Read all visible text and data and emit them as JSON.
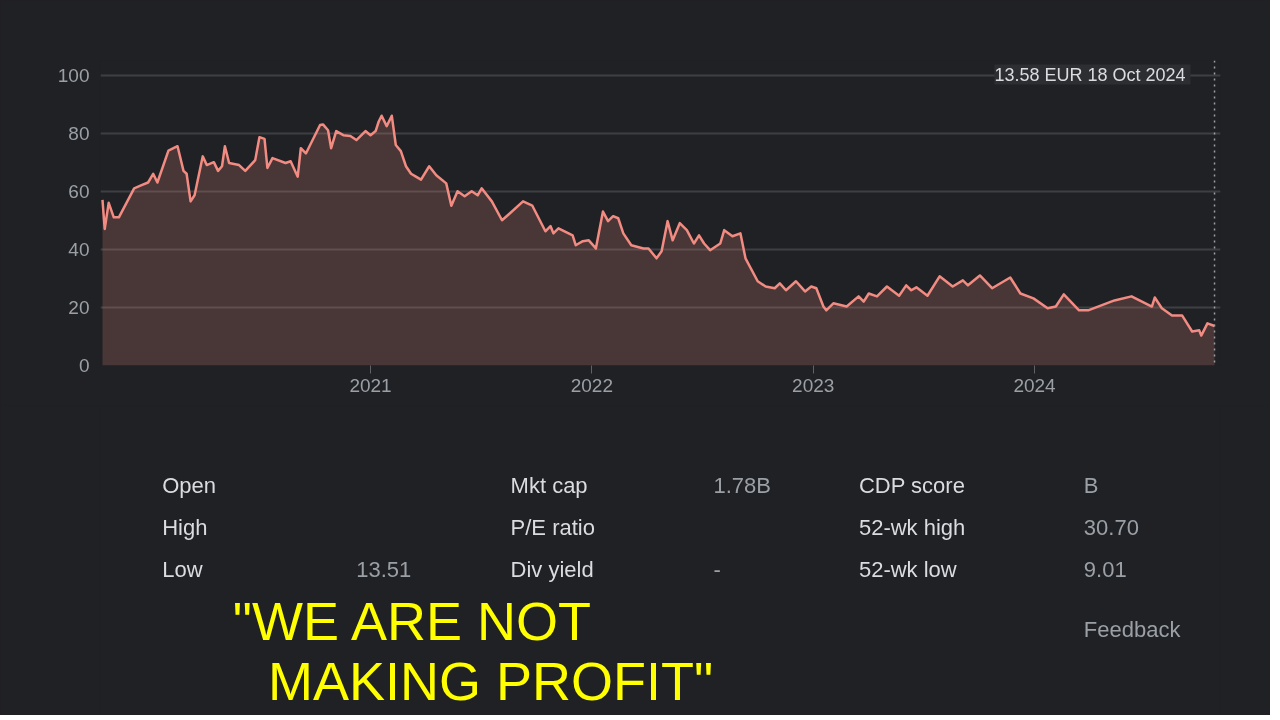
{
  "chart_data": {
    "type": "area",
    "x": [
      2019.789,
      2019.799,
      2019.817,
      2019.84,
      2019.863,
      2019.932,
      2019.963,
      2019.995,
      2020.018,
      2020.037,
      2020.087,
      2020.128,
      2020.155,
      2020.169,
      2020.187,
      2020.205,
      2020.242,
      2020.26,
      2020.292,
      2020.311,
      2020.329,
      2020.342,
      2020.361,
      2020.406,
      2020.434,
      2020.479,
      2020.498,
      2020.521,
      2020.534,
      2020.557,
      2020.616,
      2020.639,
      2020.671,
      2020.685,
      2020.708,
      2020.772,
      2020.785,
      2020.808,
      2020.822,
      2020.845,
      2020.877,
      2020.909,
      2020.936,
      2020.977,
      2021.0,
      2021.023,
      2021.037,
      2021.05,
      2021.073,
      2021.096,
      2021.114,
      2021.137,
      2021.16,
      2021.183,
      2021.205,
      2021.228,
      2021.265,
      2021.297,
      2021.342,
      2021.365,
      2021.393,
      2021.425,
      2021.457,
      2021.484,
      2021.502,
      2021.548,
      2021.594,
      2021.63,
      2021.689,
      2021.731,
      2021.79,
      2021.813,
      2021.826,
      2021.849,
      2021.913,
      2021.927,
      2021.959,
      2021.986,
      2022.018,
      2022.05,
      2022.073,
      2022.096,
      2022.119,
      2022.142,
      2022.178,
      2022.233,
      2022.256,
      2022.292,
      2022.315,
      2022.342,
      2022.365,
      2022.397,
      2022.429,
      2022.461,
      2022.484,
      2022.507,
      2022.534,
      2022.58,
      2022.598,
      2022.635,
      2022.671,
      2022.694,
      2022.749,
      2022.785,
      2022.826,
      2022.849,
      2022.877,
      2022.922,
      2022.963,
      2022.991,
      2023.014,
      2023.046,
      2023.059,
      2023.091,
      2023.151,
      2023.205,
      2023.228,
      2023.251,
      2023.288,
      2023.333,
      2023.388,
      2023.42,
      2023.443,
      2023.466,
      2023.516,
      2023.571,
      2023.63,
      2023.676,
      2023.699,
      2023.753,
      2023.808,
      2023.89,
      2023.936,
      2023.995,
      2024.059,
      2024.096,
      2024.132,
      2024.201,
      2024.242,
      2024.361,
      2024.438,
      2024.53,
      2024.543,
      2024.575,
      2024.621,
      2024.667,
      2024.712,
      2024.744,
      2024.753,
      2024.781,
      2024.813
    ],
    "series": [
      {
        "color": "#f28b82",
        "values": [
          57,
          47,
          56,
          51,
          51,
          61,
          62,
          63,
          66,
          63,
          74,
          75.5,
          67,
          66,
          56.5,
          58.6,
          72,
          69,
          70,
          67,
          68.6,
          75.5,
          69.7,
          69,
          67,
          70.7,
          78.6,
          78,
          68,
          71.4,
          69.7,
          70.3,
          65,
          74.8,
          73,
          82.8,
          83,
          81,
          74.8,
          80.7,
          79.3,
          79,
          77.6,
          80.7,
          79.3,
          80.7,
          84,
          86,
          82.4,
          86,
          75.9,
          73.8,
          68.6,
          66,
          65,
          64,
          68.6,
          65.5,
          62.7,
          55,
          60,
          58.3,
          60,
          58.6,
          61,
          56.5,
          50,
          52.4,
          56.5,
          55,
          46.2,
          48,
          45.5,
          47.2,
          44.8,
          41.4,
          42.8,
          43.1,
          40.3,
          53,
          49.7,
          51.4,
          50.7,
          45.5,
          41.4,
          40.3,
          40.3,
          36.9,
          39.3,
          49.7,
          43.1,
          49,
          46.6,
          42,
          44.8,
          42,
          39.7,
          42,
          46.6,
          44.5,
          45.5,
          36.9,
          29,
          27.2,
          26.6,
          28.3,
          25.9,
          29,
          25.5,
          27.2,
          26.6,
          20.3,
          19,
          21.4,
          20.3,
          23.8,
          22,
          24.8,
          23.8,
          27.2,
          24,
          27.6,
          25.9,
          26.9,
          24,
          30.7,
          27.2,
          29.3,
          27.6,
          31,
          26.6,
          30.3,
          24.8,
          23.1,
          19.7,
          20.3,
          24.5,
          19,
          19,
          22.4,
          23.8,
          20.3,
          23.4,
          19.7,
          17.2,
          17.2,
          11.7,
          12.1,
          10.3,
          14.5,
          13.6
        ]
      }
    ],
    "xlim": [
      2019.78,
      2024.84
    ],
    "xticks": [
      2021,
      2022,
      2023,
      2024
    ],
    "ylim": [
      0,
      105
    ],
    "yticks": [
      0,
      20,
      40,
      60,
      80,
      100
    ],
    "grid": "y",
    "ref_lines": [
      {
        "axis": "x",
        "value": 2024.813,
        "line_style": "dotted"
      }
    ],
    "annotations": [
      "13.58 EUR  18 Oct 2024",
      "Open",
      "Mkt cap",
      "1.78B",
      "CDP score",
      "B",
      "High",
      "P/E ratio",
      "52-wk high",
      "30.70",
      "Low",
      "13.51",
      "Div yield",
      "-",
      "52-wk low",
      "9.01",
      "Feedback",
      "\"WE ARE NOT MAKING PROFIT\""
    ]
  }
}
